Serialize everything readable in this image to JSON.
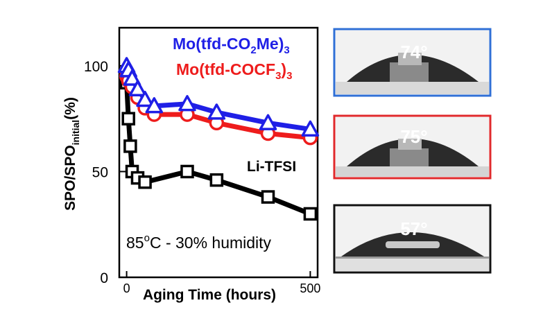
{
  "chart_data": {
    "type": "line",
    "xlabel": "Aging Time (hours)",
    "ylabel": "SPO/SPO",
    "ylabel_sub": "initial",
    "ylabel_suffix": "(%)",
    "xlim": [
      -20,
      520
    ],
    "ylim": [
      0,
      118
    ],
    "xticks": [
      0,
      500
    ],
    "yticks": [
      0,
      50,
      100
    ],
    "annotation": {
      "main": "85",
      "sup": "o",
      "rest": "C - 30% humidity"
    },
    "series": [
      {
        "name": "Mo(tfd-CO2Me)3",
        "label_main": "Mo(tfd-CO",
        "label_sub1": "2",
        "label_mid": "Me)",
        "label_sub2": "3",
        "color": "#1f1fe6",
        "marker": "triangle",
        "x": [
          0,
          5,
          15,
          30,
          50,
          75,
          165,
          245,
          385,
          500
        ],
        "y": [
          100,
          98,
          94,
          89,
          84,
          81,
          82,
          78,
          73,
          70
        ]
      },
      {
        "name": "Mo(tfd-COCF3)3",
        "label_main": "Mo(tfd-COCF",
        "label_sub1": "3",
        "label_mid": ")",
        "label_sub2": "3",
        "color": "#ee1c1c",
        "marker": "circle",
        "x": [
          0,
          5,
          15,
          30,
          50,
          75,
          165,
          245,
          385,
          500
        ],
        "y": [
          95,
          93,
          90,
          85,
          80,
          77,
          77,
          73,
          68,
          66
        ]
      },
      {
        "name": "Li-TFSI",
        "label_main": "Li-TFSI",
        "color": "#000000",
        "marker": "square",
        "x": [
          0,
          5,
          10,
          15,
          30,
          50,
          165,
          245,
          385,
          500
        ],
        "y": [
          92,
          75,
          62,
          50,
          47,
          45,
          50,
          46,
          38,
          30
        ]
      }
    ]
  },
  "contact_angles": [
    {
      "value": "74°",
      "frame_color": "#2f6fd6"
    },
    {
      "value": "75°",
      "frame_color": "#e0282b"
    },
    {
      "value": "57°",
      "frame_color": "#111111"
    }
  ]
}
